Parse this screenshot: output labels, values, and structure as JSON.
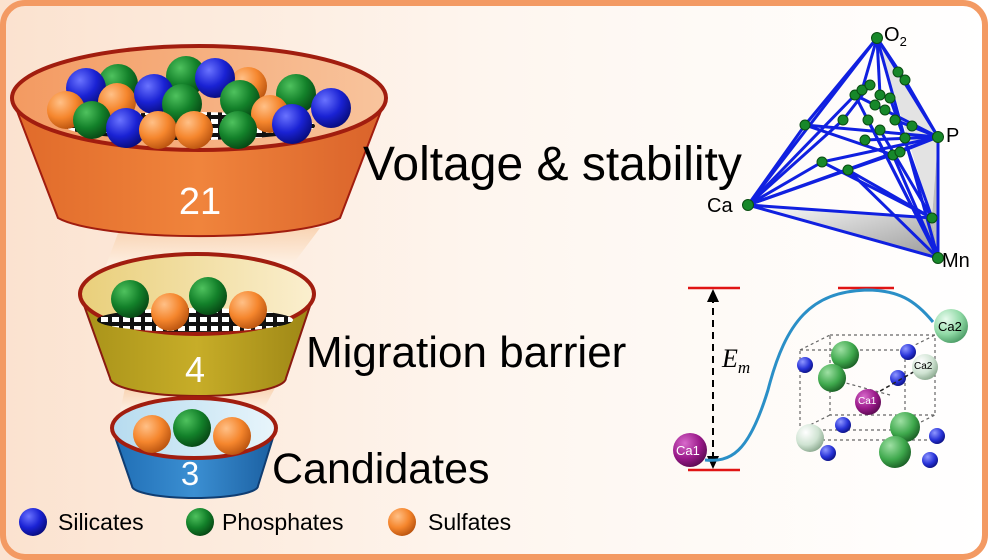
{
  "stages": [
    {
      "label": "Voltage & stability",
      "count": "21"
    },
    {
      "label": "Migration barrier",
      "count": "4"
    },
    {
      "label": "Candidates",
      "count": "3"
    }
  ],
  "legend": [
    {
      "label": "Silicates",
      "color": "#1f24d6"
    },
    {
      "label": "Phosphates",
      "color": "#16852a"
    },
    {
      "label": "Sulfates",
      "color": "#f5862d"
    }
  ],
  "phase_diagram": {
    "vertex_o2": "O",
    "vertex_o2_sub": "2",
    "vertex_p": "P",
    "vertex_ca": "Ca",
    "vertex_mn": "Mn"
  },
  "migration": {
    "energy_label": "E",
    "energy_sub": "m",
    "start_site": "Ca1",
    "end_site": "Ca2",
    "inset_site1": "Ca1",
    "inset_site2": "Ca2"
  }
}
